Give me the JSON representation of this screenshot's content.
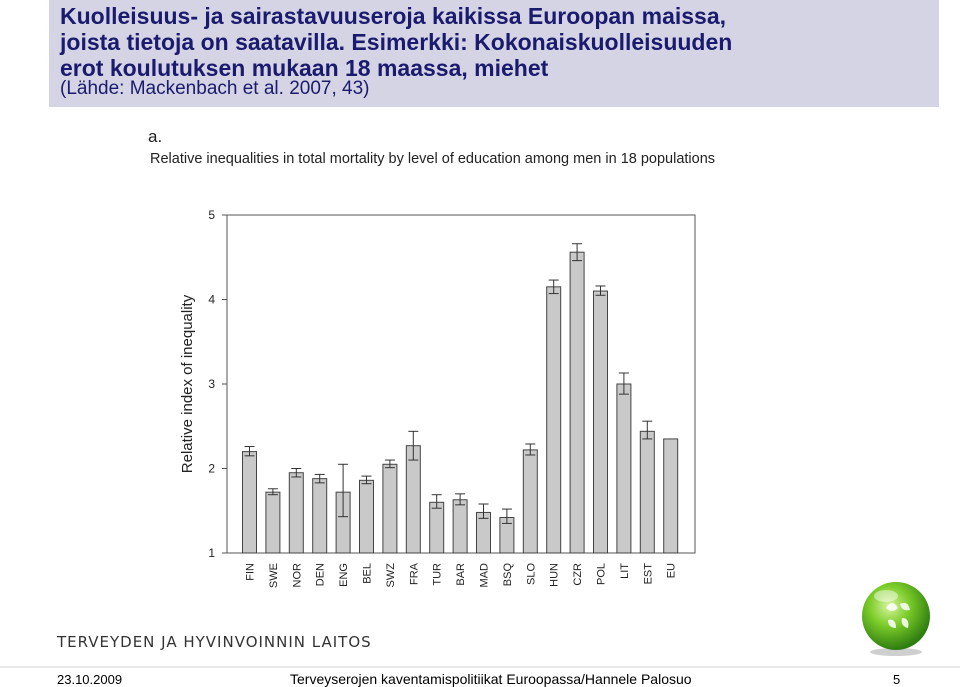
{
  "slide": {
    "title_line1": "Kuolleisuus- ja sairastavuuseroja kaikissa Euroopan maissa,",
    "title_line2": "joista tietoja on saatavilla.  Esimerkki: Kokonaiskuolleisuuden",
    "title_line3": "erot koulutuksen mukaan 18 maassa, miehet",
    "source": "(Lähde: Mackenbach et al. 2007, 43)"
  },
  "chart_data": {
    "type": "bar",
    "panel_label": "a.",
    "title": "Relative inequalities in total mortality by level of education among men in 18 populations",
    "xlabel": "",
    "ylabel": "Relative index of inequality",
    "ylim": [
      1,
      5
    ],
    "yticks": [
      "1",
      "2",
      "3",
      "4",
      "5"
    ],
    "grid": false,
    "categories": [
      "FIN",
      "SWE",
      "NOR",
      "DEN",
      "ENG",
      "BEL",
      "SWZ",
      "FRA",
      "TUR",
      "BAR",
      "MAD",
      "BSQ",
      "SLO",
      "HUN",
      "CZR",
      "POL",
      "LIT",
      "EST",
      "EU"
    ],
    "values": [
      2.2,
      1.72,
      1.95,
      1.88,
      1.72,
      1.86,
      2.05,
      2.27,
      1.6,
      1.63,
      1.48,
      1.42,
      2.22,
      4.15,
      4.56,
      4.1,
      3.0,
      2.44,
      2.35
    ],
    "err_low": [
      2.15,
      1.69,
      1.9,
      1.83,
      1.43,
      1.82,
      2.01,
      2.1,
      1.53,
      1.57,
      1.41,
      1.35,
      2.16,
      4.07,
      4.46,
      4.05,
      2.88,
      2.35,
      null
    ],
    "err_high": [
      2.26,
      1.76,
      2.0,
      1.93,
      2.05,
      1.91,
      2.1,
      2.44,
      1.69,
      1.7,
      1.58,
      1.52,
      2.29,
      4.23,
      4.66,
      4.16,
      3.13,
      2.56,
      null
    ],
    "colors": {
      "bar_fill": "#c9c9c9",
      "bar_stroke": "#444444"
    }
  },
  "footer": {
    "org": "TERVEYDEN JA HYVINVOINNIN LAITOS",
    "date": "23.10.2009",
    "text": "Terveyserojen kaventamispolitiikat Euroopassa/Hannele Palosuo",
    "page": "5"
  },
  "colors": {
    "title_bg": "#d4d4e4",
    "title_text": "#1a1a6e"
  },
  "icons": {
    "logo": "green-globe-icon"
  }
}
